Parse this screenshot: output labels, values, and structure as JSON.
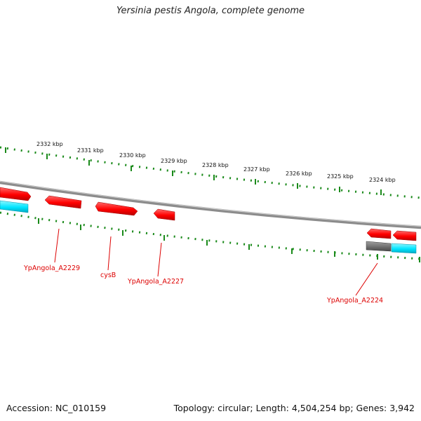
{
  "title": "Yersinia pestis Angola, complete genome",
  "footer": {
    "accession": "Accession: NC_010159",
    "summary": "Topology: circular; Length: 4,504,254 bp; Genes: 3,942"
  },
  "scale_labels": [
    "2332 kbp",
    "2331 kbp",
    "2330 kbp",
    "2329 kbp",
    "2328 kbp",
    "2327 kbp",
    "2326 kbp",
    "2325 kbp",
    "2324 kbp"
  ],
  "gene_labels": [
    "YpAngola_A2229",
    "cysB",
    "YpAngola_A2227",
    "YpAngola_A2224"
  ],
  "colors": {
    "cds": "#ff0000",
    "rna": "#00e5ff",
    "pseudo": "#777777",
    "backbone": "#8c8c8c",
    "ticks": "#1a8a1a",
    "label": "#dd0000"
  }
}
